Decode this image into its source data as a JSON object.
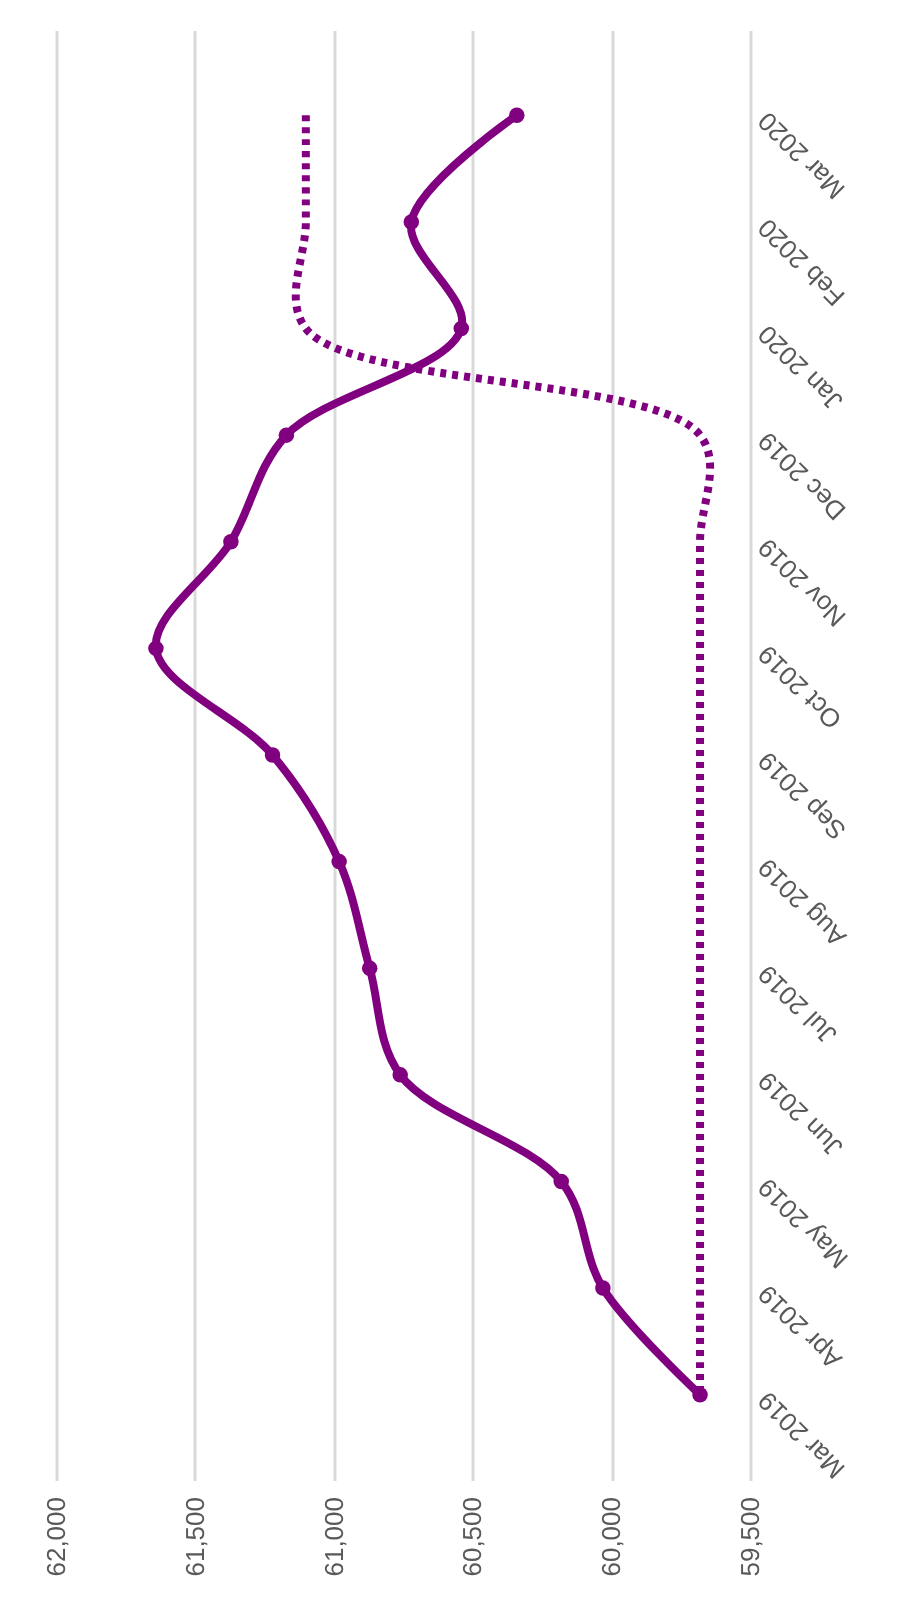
{
  "chart_data": {
    "type": "line",
    "orientation": "horizontal",
    "categories": [
      "Mar 2020",
      "Feb 2020",
      "Jan 2020",
      "Dec 2019",
      "Nov 2019",
      "Oct 2019",
      "Sep 2019",
      "Aug 2019",
      "Jul 2019",
      "Jun 2019",
      "May 2019",
      "Apr 2019",
      "Mar 2019"
    ],
    "series": [
      {
        "color": "#800080",
        "line_style": "solid",
        "marker": "circle",
        "values": [
          60340,
          60720,
          60540,
          61170,
          61370,
          61640,
          61220,
          60980,
          60870,
          60760,
          60180,
          60030,
          59680
        ]
      },
      {
        "color": "#800080",
        "line_style": "dotted",
        "marker": "none",
        "values": [
          61100,
          61100,
          61100,
          59680,
          59680,
          59680,
          59680,
          59680,
          59680,
          59680,
          59680,
          59680,
          59680
        ]
      }
    ],
    "xlim": [
      62000,
      59500
    ],
    "xticks": [
      {
        "value": 62000,
        "label": "62,000"
      },
      {
        "value": 61500,
        "label": "61,500"
      },
      {
        "value": 61000,
        "label": "61,000"
      },
      {
        "value": 60500,
        "label": "60,500"
      },
      {
        "value": 60000,
        "label": "60,000"
      },
      {
        "value": 59500,
        "label": "59,500"
      }
    ],
    "grid": "x"
  }
}
